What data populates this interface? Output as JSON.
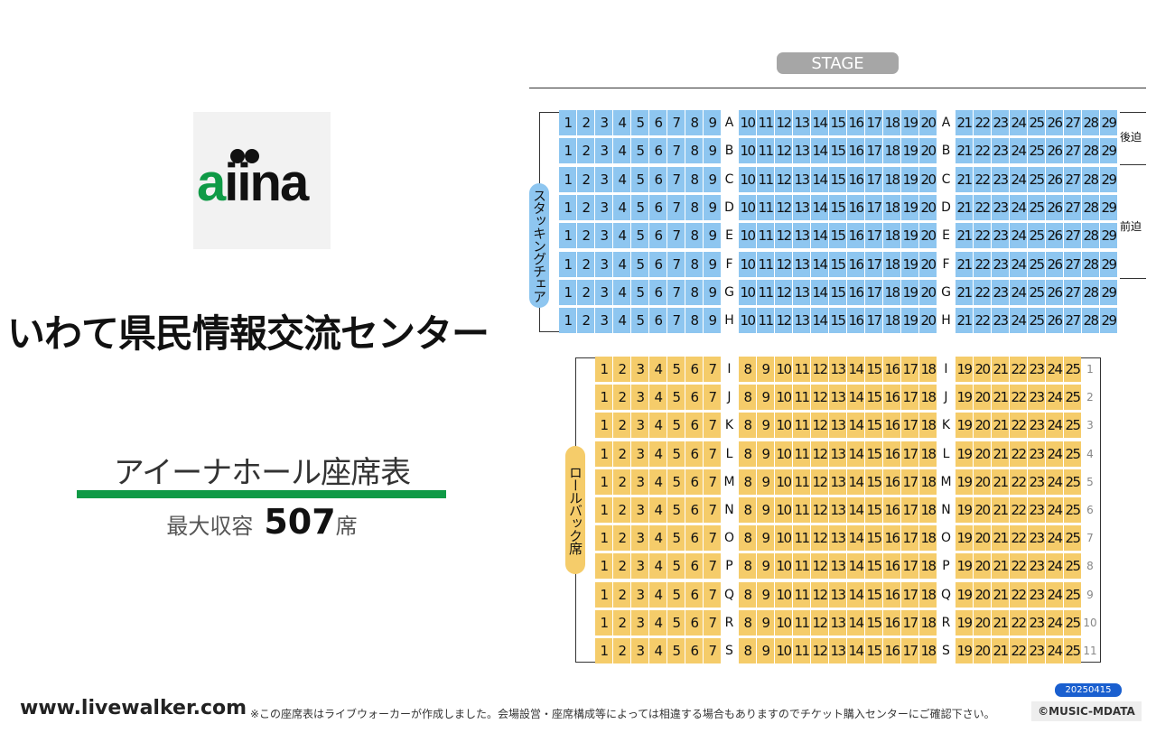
{
  "logo": {
    "text": "aiina"
  },
  "venue_name": "いわて県民情報交流センター",
  "chart_title": "アイーナホール座席表",
  "capacity": {
    "label": "最大収容",
    "value": "507",
    "unit": "席"
  },
  "stage_label": "STAGE",
  "stacking_chair_label": "スタッキングチェア",
  "rollback_label": "ロールバック席",
  "rear_lift_label": "後迫",
  "front_lift_label": "前迫",
  "front_section": {
    "rows": [
      "A",
      "B",
      "C",
      "D",
      "E",
      "F",
      "G",
      "H"
    ],
    "left_seats": [
      "1",
      "2",
      "3",
      "4",
      "5",
      "6",
      "7",
      "8",
      "9"
    ],
    "center_seats": [
      "10",
      "11",
      "12",
      "13",
      "14",
      "15",
      "16",
      "17",
      "18",
      "19",
      "20"
    ],
    "right_seats": [
      "21",
      "22",
      "23",
      "24",
      "25",
      "26",
      "27",
      "28",
      "29"
    ]
  },
  "back_section": {
    "rows": [
      "I",
      "J",
      "K",
      "L",
      "M",
      "N",
      "O",
      "P",
      "Q",
      "R",
      "S"
    ],
    "row_numbers": [
      "1",
      "2",
      "3",
      "4",
      "5",
      "6",
      "7",
      "8",
      "9",
      "10",
      "11"
    ],
    "left_seats": [
      "1",
      "2",
      "3",
      "4",
      "5",
      "6",
      "7"
    ],
    "center_seats": [
      "8",
      "9",
      "10",
      "11",
      "12",
      "13",
      "14",
      "15",
      "16",
      "17",
      "18"
    ],
    "right_seats": [
      "19",
      "20",
      "21",
      "22",
      "23",
      "24",
      "25"
    ]
  },
  "footer": {
    "site": "www.livewalker.com",
    "disclaimer": "※この座席表はライブウォーカーが作成しました。会場設営・座席構成等によっては相違する場合もありますのでチケット購入センターにご確認下さい。",
    "date": "20250415",
    "copyright": "©MUSIC-MDATA"
  },
  "colors": {
    "front_seat": "#8ec6f0",
    "back_seat": "#f5cc6a",
    "accent_green": "#0f9a46",
    "stage": "#a6a6a6"
  }
}
